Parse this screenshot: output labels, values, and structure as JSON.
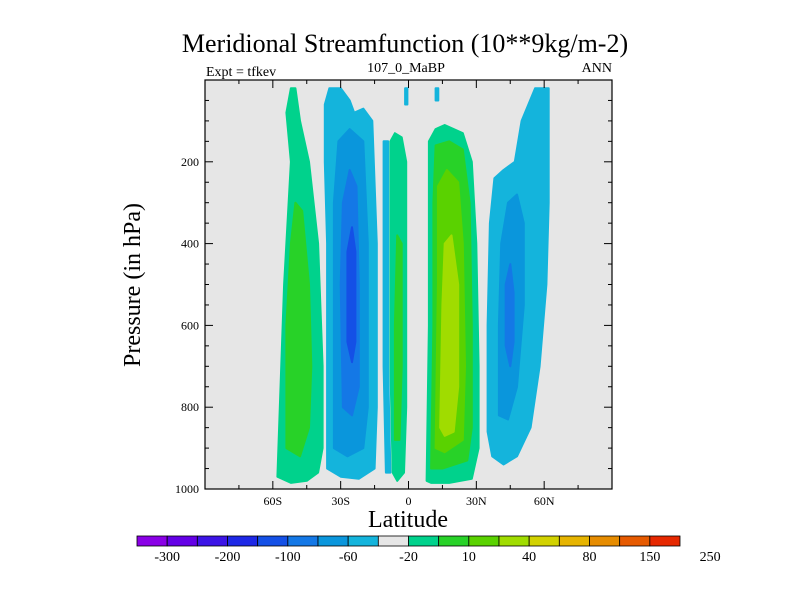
{
  "chart_data": {
    "type": "contour",
    "title": "Meridional Streamfunction (10**9kg/m-2)",
    "subtitle_left": "Expt = tfkev",
    "subtitle_center": "107_0_MaBP",
    "subtitle_right": "ANN",
    "xlabel": "Latitude",
    "ylabel": "Pressure (in hPa)",
    "xlim": [
      -90,
      90
    ],
    "ylim": [
      1000,
      0
    ],
    "x_ticks": [
      {
        "value": -60,
        "label": "60S"
      },
      {
        "value": -30,
        "label": "30S"
      },
      {
        "value": 0,
        "label": "0"
      },
      {
        "value": 30,
        "label": "30N"
      },
      {
        "value": 60,
        "label": "60N"
      }
    ],
    "y_ticks": [
      {
        "value": 200,
        "label": "200"
      },
      {
        "value": 400,
        "label": "400"
      },
      {
        "value": 600,
        "label": "600"
      },
      {
        "value": 800,
        "label": "800"
      },
      {
        "value": 1000,
        "label": "1000"
      }
    ],
    "background_color": "#e6e6e6",
    "colorbar": {
      "colors": [
        "#8a00e6",
        "#6400e6",
        "#3c14e6",
        "#1e28e6",
        "#1450e6",
        "#1478e6",
        "#0a96dc",
        "#14b4dc",
        "#e6e6e6",
        "#00d28c",
        "#28d228",
        "#5ad200",
        "#a0dc00",
        "#d2d200",
        "#e6b400",
        "#e68c00",
        "#e65a00",
        "#e62800"
      ],
      "labels": [
        "-300",
        "-200",
        "-100",
        "-60",
        "-20",
        "10",
        "40",
        "80",
        "150",
        "250"
      ],
      "label_after_box_index": [
        1,
        3,
        5,
        7,
        9,
        11,
        13,
        15,
        17,
        19
      ]
    },
    "regions": [
      {
        "name": "sh-green-cell",
        "color": "#00d28c",
        "points": [
          [
            -58,
            970
          ],
          [
            -55,
            500
          ],
          [
            -52,
            200
          ],
          [
            -54,
            80
          ],
          [
            -52,
            20
          ],
          [
            -50,
            20
          ],
          [
            -48,
            100
          ],
          [
            -44,
            200
          ],
          [
            -40,
            400
          ],
          [
            -38,
            700
          ],
          [
            -38,
            900
          ],
          [
            -40,
            960
          ],
          [
            -45,
            980
          ],
          [
            -52,
            985
          ]
        ]
      },
      {
        "name": "sh-green-inner",
        "color": "#28d228",
        "points": [
          [
            -54,
            900
          ],
          [
            -54,
            600
          ],
          [
            -52,
            400
          ],
          [
            -50,
            300
          ],
          [
            -47,
            320
          ],
          [
            -44,
            500
          ],
          [
            -43,
            700
          ],
          [
            -44,
            850
          ],
          [
            -48,
            920
          ]
        ]
      },
      {
        "name": "sh-blue-outer",
        "color": "#14b4dc",
        "points": [
          [
            -36,
            950
          ],
          [
            -36,
            700
          ],
          [
            -36,
            400
          ],
          [
            -37,
            200
          ],
          [
            -37,
            60
          ],
          [
            -35,
            20
          ],
          [
            -30,
            20
          ],
          [
            -26,
            50
          ],
          [
            -24,
            80
          ],
          [
            -20,
            70
          ],
          [
            -16,
            100
          ],
          [
            -14,
            400
          ],
          [
            -14,
            800
          ],
          [
            -15,
            950
          ],
          [
            -22,
            975
          ],
          [
            -30,
            970
          ]
        ]
      },
      {
        "name": "sh-blue-mid",
        "color": "#0a96dc",
        "points": [
          [
            -33,
            900
          ],
          [
            -33,
            600
          ],
          [
            -33,
            300
          ],
          [
            -31,
            150
          ],
          [
            -26,
            120
          ],
          [
            -20,
            150
          ],
          [
            -18,
            400
          ],
          [
            -18,
            800
          ],
          [
            -20,
            900
          ],
          [
            -27,
            920
          ]
        ]
      },
      {
        "name": "sh-blue-inner",
        "color": "#1478e6",
        "points": [
          [
            -29,
            800
          ],
          [
            -30,
            500
          ],
          [
            -29,
            300
          ],
          [
            -26,
            220
          ],
          [
            -23,
            260
          ],
          [
            -22,
            500
          ],
          [
            -22,
            750
          ],
          [
            -25,
            820
          ]
        ]
      },
      {
        "name": "sh-blue-core",
        "color": "#1450e6",
        "points": [
          [
            -27,
            640
          ],
          [
            -27,
            420
          ],
          [
            -25,
            360
          ],
          [
            -23.5,
            420
          ],
          [
            -23.5,
            640
          ],
          [
            -25,
            690
          ]
        ]
      },
      {
        "name": "eq-green-strip",
        "color": "#00d28c",
        "points": [
          [
            -7,
            960
          ],
          [
            -8,
            700
          ],
          [
            -8,
            400
          ],
          [
            -8,
            150
          ],
          [
            -6,
            130
          ],
          [
            -3,
            140
          ],
          [
            -1,
            200
          ],
          [
            -1,
            500
          ],
          [
            -1,
            800
          ],
          [
            -2,
            960
          ],
          [
            -5,
            980
          ]
        ]
      },
      {
        "name": "eq-green-strip-inner",
        "color": "#28d228",
        "points": [
          [
            -6,
            880
          ],
          [
            -6,
            600
          ],
          [
            -5,
            380
          ],
          [
            -3,
            400
          ],
          [
            -3,
            700
          ],
          [
            -4,
            880
          ]
        ]
      },
      {
        "name": "eq-blue-strip",
        "color": "#14b4dc",
        "points": [
          [
            -10,
            960
          ],
          [
            -11,
            700
          ],
          [
            -11,
            400
          ],
          [
            -11,
            150
          ],
          [
            -9,
            150
          ],
          [
            -9,
            400
          ],
          [
            -9,
            700
          ],
          [
            -8,
            960
          ]
        ]
      },
      {
        "name": "top-blue-stub-left",
        "color": "#14b4dc",
        "points": [
          [
            -1.5,
            20
          ],
          [
            -1.5,
            60
          ],
          [
            -0.5,
            60
          ],
          [
            -0.5,
            20
          ]
        ]
      },
      {
        "name": "top-blue-stub-right",
        "color": "#14b4dc",
        "points": [
          [
            12,
            20
          ],
          [
            12,
            50
          ],
          [
            13.2,
            50
          ],
          [
            13.2,
            20
          ]
        ]
      },
      {
        "name": "nh-green-outer",
        "color": "#00d28c",
        "points": [
          [
            8,
            980
          ],
          [
            9,
            600
          ],
          [
            9,
            300
          ],
          [
            9,
            150
          ],
          [
            12,
            120
          ],
          [
            16,
            110
          ],
          [
            24,
            130
          ],
          [
            28,
            200
          ],
          [
            30,
            400
          ],
          [
            31,
            700
          ],
          [
            31,
            900
          ],
          [
            28,
            975
          ],
          [
            18,
            985
          ],
          [
            10,
            985
          ]
        ]
      },
      {
        "name": "nh-green-mid",
        "color": "#28d228",
        "points": [
          [
            10,
            950
          ],
          [
            11,
            600
          ],
          [
            11,
            300
          ],
          [
            12,
            160
          ],
          [
            18,
            150
          ],
          [
            24,
            170
          ],
          [
            27,
            300
          ],
          [
            28,
            600
          ],
          [
            28,
            850
          ],
          [
            26,
            930
          ],
          [
            15,
            950
          ]
        ]
      },
      {
        "name": "nh-green-inner",
        "color": "#5ad200",
        "points": [
          [
            12,
            900
          ],
          [
            13,
            500
          ],
          [
            13,
            260
          ],
          [
            17,
            220
          ],
          [
            22,
            250
          ],
          [
            24,
            400
          ],
          [
            25,
            700
          ],
          [
            24,
            880
          ],
          [
            16,
            910
          ]
        ]
      },
      {
        "name": "nh-yellow-core",
        "color": "#a0dc00",
        "points": [
          [
            14,
            850
          ],
          [
            15,
            550
          ],
          [
            16,
            400
          ],
          [
            19,
            380
          ],
          [
            22,
            500
          ],
          [
            22,
            750
          ],
          [
            20,
            860
          ],
          [
            16,
            870
          ]
        ]
      },
      {
        "name": "nh-blue-outer",
        "color": "#14b4dc",
        "points": [
          [
            35,
            860
          ],
          [
            35,
            600
          ],
          [
            36,
            350
          ],
          [
            38,
            240
          ],
          [
            42,
            220
          ],
          [
            47,
            200
          ],
          [
            50,
            100
          ],
          [
            56,
            20
          ],
          [
            62,
            20
          ],
          [
            62,
            300
          ],
          [
            61,
            500
          ],
          [
            58,
            700
          ],
          [
            54,
            850
          ],
          [
            48,
            920
          ],
          [
            42,
            940
          ],
          [
            37,
            920
          ]
        ]
      },
      {
        "name": "nh-blue-mid",
        "color": "#0a96dc",
        "points": [
          [
            40,
            820
          ],
          [
            40,
            600
          ],
          [
            41,
            400
          ],
          [
            44,
            300
          ],
          [
            48,
            280
          ],
          [
            51,
            350
          ],
          [
            51,
            550
          ],
          [
            48,
            750
          ],
          [
            44,
            830
          ]
        ]
      },
      {
        "name": "nh-blue-core",
        "color": "#1478e6",
        "points": [
          [
            43,
            650
          ],
          [
            43,
            500
          ],
          [
            45,
            450
          ],
          [
            46.5,
            520
          ],
          [
            46.5,
            640
          ],
          [
            45,
            700
          ]
        ]
      }
    ]
  }
}
